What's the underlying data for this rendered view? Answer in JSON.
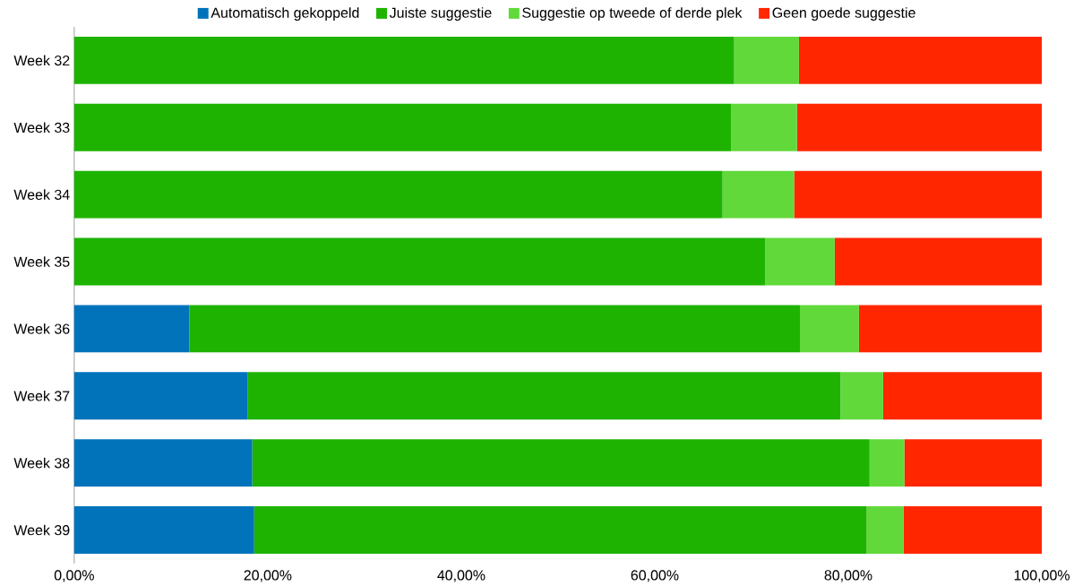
{
  "chart_data": {
    "type": "bar",
    "orientation": "horizontal",
    "stacked": true,
    "legend": "top",
    "grid": false,
    "categories": [
      "Week 32",
      "Week 33",
      "Week 34",
      "Week 35",
      "Week 36",
      "Week 37",
      "Week 38",
      "Week 39"
    ],
    "series": [
      {
        "name": "Automatisch gekoppeld",
        "color": "#0073bb",
        "values": [
          0,
          0,
          0,
          0,
          11.9,
          17.9,
          18.4,
          18.6
        ]
      },
      {
        "name": "Juiste suggestie",
        "color": "#1eb300",
        "values": [
          68.2,
          67.9,
          67.0,
          71.4,
          63.1,
          61.3,
          63.8,
          63.3
        ]
      },
      {
        "name": "Suggestie op tweede of derde plek",
        "color": "#62d93a",
        "values": [
          6.7,
          6.8,
          7.4,
          7.2,
          6.1,
          4.4,
          3.6,
          3.8
        ]
      },
      {
        "name": "Geen goede suggestie",
        "color": "#ff2600",
        "values": [
          25.1,
          25.3,
          25.6,
          21.4,
          18.9,
          16.4,
          14.2,
          14.3
        ]
      }
    ],
    "xlim": [
      0,
      100
    ],
    "xticks": [
      {
        "value": 0,
        "label": "0,00%"
      },
      {
        "value": 20,
        "label": "20,00%"
      },
      {
        "value": 40,
        "label": "40,00%"
      },
      {
        "value": 60,
        "label": "60,00%"
      },
      {
        "value": 80,
        "label": "80,00%"
      },
      {
        "value": 100,
        "label": "100,00%"
      }
    ]
  }
}
